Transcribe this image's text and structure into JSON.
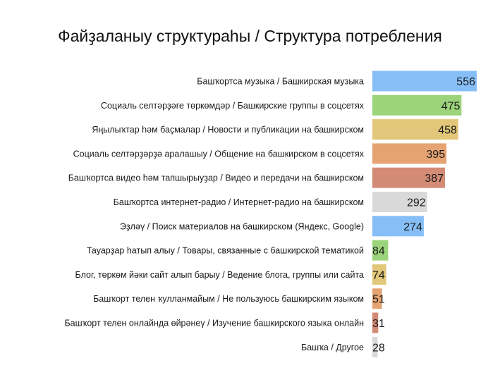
{
  "chart_data": {
    "type": "bar",
    "orientation": "horizontal",
    "title": "Файҙаланыу структураһы / Структура потребления",
    "xlabel": "",
    "ylabel": "",
    "grid": false,
    "legend": "none",
    "categories": [
      "Башҡортса музыка / Башкирская музыка",
      "Социаль селтәрҙәге төркөмдәр / Башкирские группы в соцсетях",
      "Яңылыҡтар һәм баҫмалар / Новости и публикации на башкирском",
      "Социаль селтәрҙәрҙә аралашыу / Общение на башкирском в соцсетях",
      "Башҡортса видео һәм тапшырыуҙар / Видео и передачи на башкирском",
      "Башҡортса интернет-радио / Интернет-радио на башкирском",
      "Эҙләү / Поиск материалов на башкирском (Яндекс, Google)",
      "Тауарҙар һатып алыу / Товары, связанные с башкирской тематикой",
      "Блог, төркөм йәки сайт алып барыу / Ведение блога, группы или сайта",
      "Башҡорт телен ҡулланмайым / Не пользуюсь башкирским языком",
      "Башҡорт телен онлайнда өйрәнеү / Изучение башкирского языка онлайн",
      "Башҡа / Другое"
    ],
    "values": [
      556,
      475,
      458,
      395,
      387,
      292,
      274,
      84,
      74,
      51,
      31,
      28
    ],
    "value_labels": [
      "556",
      "475",
      "458",
      "395",
      "387",
      "292",
      "274",
      "84",
      "74",
      "51",
      "31",
      "28"
    ],
    "colors": [
      "#86bff7",
      "#9bd47a",
      "#e2c77a",
      "#e5a372",
      "#d48b76",
      "#d9d9d9",
      "#86bff7",
      "#9bd47a",
      "#e2c77a",
      "#e5a372",
      "#d48b76",
      "#d9d9d9"
    ],
    "xlim": [
      0,
      556
    ]
  }
}
